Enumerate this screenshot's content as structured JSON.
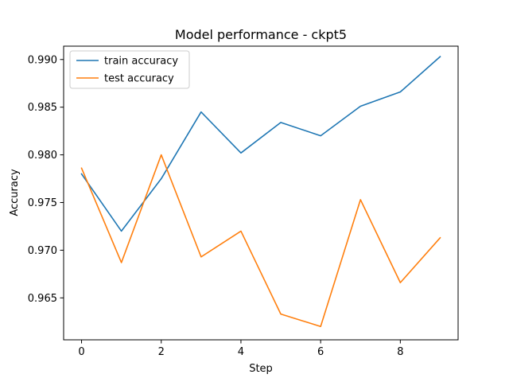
{
  "chart_data": {
    "type": "line",
    "title": "Model performance - ckpt5",
    "xlabel": "Step",
    "ylabel": "Accuracy",
    "x": [
      0,
      1,
      2,
      3,
      4,
      5,
      6,
      7,
      8,
      9
    ],
    "xlim": [
      -0.45,
      9.45
    ],
    "ylim": [
      0.9606,
      0.9914
    ],
    "x_ticks": [
      0,
      2,
      4,
      6,
      8
    ],
    "y_ticks": [
      0.965,
      0.97,
      0.975,
      0.98,
      0.985,
      0.99
    ],
    "y_tick_labels": [
      "0.965",
      "0.970",
      "0.975",
      "0.980",
      "0.985",
      "0.990"
    ],
    "grid": false,
    "legend_position": "upper-left",
    "series": [
      {
        "name": "train accuracy",
        "color": "#1f77b4",
        "values": [
          0.978,
          0.972,
          0.9775,
          0.9845,
          0.9802,
          0.9834,
          0.982,
          0.9851,
          0.9866,
          0.9903
        ]
      },
      {
        "name": "test accuracy",
        "color": "#ff7f0e",
        "values": [
          0.9786,
          0.9687,
          0.98,
          0.9693,
          0.972,
          0.9633,
          0.962,
          0.9753,
          0.9666,
          0.9713
        ]
      }
    ]
  }
}
